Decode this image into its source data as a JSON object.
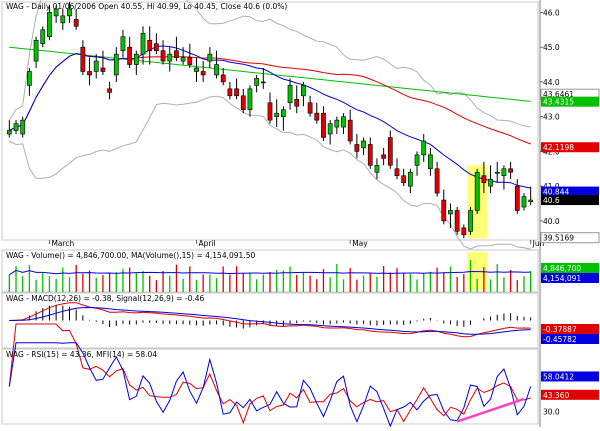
{
  "chart_data": {
    "type": "candlestick",
    "symbol": "WAG",
    "title": "WAG - Daily 01/06/2006 Open 40.55, Hi 40.99, Lo 40.45, Close 40.6 (0.0%)",
    "x_month_labels": [
      "March",
      "April",
      "May",
      "Jun"
    ],
    "price_axis": {
      "ticks": [
        40.0,
        41.0,
        42.0,
        43.0,
        44.0,
        45.0,
        46.0
      ],
      "ylim": [
        39.45,
        46.3
      ]
    },
    "price_callouts": [
      {
        "text": "43.6461",
        "value": 43.6461,
        "color": "#ffffff",
        "fill": "#ffffff"
      },
      {
        "text": "43.4315",
        "value": 43.4315,
        "color": "#00c000",
        "fill": "#00c000"
      },
      {
        "text": "42.1198",
        "value": 42.1198,
        "color": "#e00000",
        "fill": "#e00000"
      },
      {
        "text": "40.844",
        "value": 40.844,
        "color": "#0000e0",
        "fill": "#0000e0"
      },
      {
        "text": "40.6",
        "value": 40.6,
        "color": "#000000",
        "fill": "#000000"
      },
      {
        "text": "39.5169",
        "value": 39.5169,
        "color": "#ffffff",
        "fill": "#ffffff"
      }
    ],
    "candles": [
      {
        "o": 42.5,
        "h": 42.9,
        "l": 42.4,
        "c": 42.6
      },
      {
        "o": 42.6,
        "h": 42.9,
        "l": 42.5,
        "c": 42.8
      },
      {
        "o": 42.5,
        "h": 43.0,
        "l": 42.4,
        "c": 42.9
      },
      {
        "o": 43.9,
        "h": 44.4,
        "l": 43.6,
        "c": 44.3
      },
      {
        "o": 44.6,
        "h": 45.3,
        "l": 44.4,
        "c": 45.2
      },
      {
        "o": 45.1,
        "h": 45.6,
        "l": 45.0,
        "c": 45.5
      },
      {
        "o": 45.3,
        "h": 46.2,
        "l": 45.2,
        "c": 46.0
      },
      {
        "o": 45.9,
        "h": 46.2,
        "l": 45.7,
        "c": 46.1
      },
      {
        "o": 45.7,
        "h": 46.1,
        "l": 45.5,
        "c": 45.9
      },
      {
        "o": 45.9,
        "h": 46.3,
        "l": 45.7,
        "c": 46.1
      },
      {
        "o": 45.8,
        "h": 46.1,
        "l": 45.5,
        "c": 45.6
      },
      {
        "o": 45.0,
        "h": 45.2,
        "l": 44.2,
        "c": 44.3
      },
      {
        "o": 44.3,
        "h": 44.7,
        "l": 43.9,
        "c": 44.2
      },
      {
        "o": 44.3,
        "h": 44.8,
        "l": 44.1,
        "c": 44.6
      },
      {
        "o": 44.4,
        "h": 44.9,
        "l": 44.2,
        "c": 44.3
      },
      {
        "o": 43.8,
        "h": 44.0,
        "l": 43.5,
        "c": 43.7
      },
      {
        "o": 44.2,
        "h": 45.0,
        "l": 44.0,
        "c": 44.8
      },
      {
        "o": 44.9,
        "h": 45.5,
        "l": 44.7,
        "c": 45.3
      },
      {
        "o": 45.0,
        "h": 45.3,
        "l": 44.4,
        "c": 44.5
      },
      {
        "o": 44.5,
        "h": 44.9,
        "l": 44.2,
        "c": 44.8
      },
      {
        "o": 44.8,
        "h": 45.6,
        "l": 44.5,
        "c": 45.4
      },
      {
        "o": 45.2,
        "h": 45.6,
        "l": 44.5,
        "c": 44.9
      },
      {
        "o": 45.1,
        "h": 45.4,
        "l": 44.8,
        "c": 44.9
      },
      {
        "o": 44.9,
        "h": 45.2,
        "l": 44.5,
        "c": 44.6
      },
      {
        "o": 44.6,
        "h": 45.0,
        "l": 44.3,
        "c": 44.8
      },
      {
        "o": 44.9,
        "h": 45.3,
        "l": 44.6,
        "c": 44.7
      },
      {
        "o": 44.6,
        "h": 45.0,
        "l": 44.5,
        "c": 44.7
      },
      {
        "o": 44.7,
        "h": 45.1,
        "l": 44.4,
        "c": 44.5
      },
      {
        "o": 44.3,
        "h": 44.7,
        "l": 44.0,
        "c": 44.4
      },
      {
        "o": 44.3,
        "h": 44.6,
        "l": 44.0,
        "c": 44.2
      },
      {
        "o": 44.6,
        "h": 45.0,
        "l": 44.4,
        "c": 44.8
      },
      {
        "o": 44.2,
        "h": 44.9,
        "l": 44.1,
        "c": 44.5
      },
      {
        "o": 44.2,
        "h": 44.4,
        "l": 43.9,
        "c": 44.0
      },
      {
        "o": 43.8,
        "h": 44.0,
        "l": 43.5,
        "c": 43.6
      },
      {
        "o": 43.8,
        "h": 44.1,
        "l": 43.5,
        "c": 43.6
      },
      {
        "o": 43.6,
        "h": 43.8,
        "l": 43.1,
        "c": 43.2
      },
      {
        "o": 43.2,
        "h": 43.9,
        "l": 43.0,
        "c": 43.8
      },
      {
        "o": 43.9,
        "h": 44.2,
        "l": 43.7,
        "c": 44.1
      },
      {
        "o": 44.0,
        "h": 44.4,
        "l": 43.8,
        "c": 44.0
      },
      {
        "o": 43.4,
        "h": 43.7,
        "l": 42.8,
        "c": 42.9
      },
      {
        "o": 43.0,
        "h": 43.5,
        "l": 42.7,
        "c": 43.1
      },
      {
        "o": 43.0,
        "h": 43.3,
        "l": 42.6,
        "c": 43.2
      },
      {
        "o": 43.4,
        "h": 44.1,
        "l": 43.2,
        "c": 43.9
      },
      {
        "o": 43.5,
        "h": 43.9,
        "l": 43.1,
        "c": 43.3
      },
      {
        "o": 43.6,
        "h": 44.0,
        "l": 43.3,
        "c": 43.9
      },
      {
        "o": 43.4,
        "h": 43.6,
        "l": 43.0,
        "c": 43.1
      },
      {
        "o": 43.1,
        "h": 43.4,
        "l": 42.8,
        "c": 42.9
      },
      {
        "o": 43.1,
        "h": 43.3,
        "l": 42.3,
        "c": 42.4
      },
      {
        "o": 42.5,
        "h": 42.9,
        "l": 42.2,
        "c": 42.8
      },
      {
        "o": 42.7,
        "h": 43.0,
        "l": 42.5,
        "c": 42.9
      },
      {
        "o": 42.7,
        "h": 43.1,
        "l": 42.5,
        "c": 43.0
      },
      {
        "o": 42.9,
        "h": 43.2,
        "l": 42.2,
        "c": 42.3
      },
      {
        "o": 42.2,
        "h": 42.5,
        "l": 41.8,
        "c": 42.0
      },
      {
        "o": 42.1,
        "h": 42.4,
        "l": 41.9,
        "c": 42.3
      },
      {
        "o": 42.2,
        "h": 42.4,
        "l": 41.5,
        "c": 41.6
      },
      {
        "o": 41.4,
        "h": 41.8,
        "l": 41.2,
        "c": 41.6
      },
      {
        "o": 41.9,
        "h": 42.1,
        "l": 41.6,
        "c": 41.8
      },
      {
        "o": 42.4,
        "h": 42.6,
        "l": 41.5,
        "c": 41.6
      },
      {
        "o": 41.5,
        "h": 41.8,
        "l": 41.2,
        "c": 41.3
      },
      {
        "o": 41.3,
        "h": 41.5,
        "l": 41.0,
        "c": 41.1
      },
      {
        "o": 41.0,
        "h": 41.5,
        "l": 40.8,
        "c": 41.4
      },
      {
        "o": 41.6,
        "h": 42.0,
        "l": 41.3,
        "c": 41.9
      },
      {
        "o": 41.9,
        "h": 42.5,
        "l": 41.7,
        "c": 42.3
      },
      {
        "o": 41.5,
        "h": 42.1,
        "l": 41.3,
        "c": 41.9
      },
      {
        "o": 41.5,
        "h": 41.7,
        "l": 40.7,
        "c": 40.8
      },
      {
        "o": 40.6,
        "h": 40.9,
        "l": 39.9,
        "c": 40.0
      },
      {
        "o": 40.2,
        "h": 40.5,
        "l": 39.8,
        "c": 40.3
      },
      {
        "o": 40.3,
        "h": 40.4,
        "l": 39.6,
        "c": 39.7
      },
      {
        "o": 39.8,
        "h": 39.9,
        "l": 39.5,
        "c": 39.6
      },
      {
        "o": 39.7,
        "h": 40.4,
        "l": 39.6,
        "c": 40.3
      },
      {
        "o": 40.3,
        "h": 41.5,
        "l": 40.2,
        "c": 41.4
      },
      {
        "o": 41.3,
        "h": 41.7,
        "l": 40.8,
        "c": 41.1
      },
      {
        "o": 41.0,
        "h": 41.6,
        "l": 40.8,
        "c": 41.2
      },
      {
        "o": 41.4,
        "h": 41.7,
        "l": 41.1,
        "c": 41.4
      },
      {
        "o": 41.3,
        "h": 41.6,
        "l": 40.9,
        "c": 41.5
      },
      {
        "o": 41.5,
        "h": 41.7,
        "l": 41.2,
        "c": 41.4
      },
      {
        "o": 41.0,
        "h": 41.2,
        "l": 40.2,
        "c": 40.3
      },
      {
        "o": 40.4,
        "h": 40.8,
        "l": 40.3,
        "c": 40.7
      },
      {
        "o": 40.55,
        "h": 40.99,
        "l": 40.45,
        "c": 40.6
      }
    ],
    "month_start_index": [
      6,
      28,
      51,
      78
    ],
    "highlight_range": [
      69,
      71
    ],
    "ma_legend": {
      "text": "WAG - Volume() = 4,846,700.00, MA(Volume(),15) = 4,154,091.50"
    },
    "volume_panel": {
      "callouts": [
        {
          "text": "4,846,700",
          "value": 4846700,
          "color": "#00c000",
          "fill": "#00c000"
        },
        {
          "text": "4,154,091",
          "value": 4154091,
          "color": "#0000e0",
          "fill": "#0000e0"
        }
      ]
    },
    "macd_panel": {
      "legend": {
        "text": "WAG - MACD(12,26) = -0.38, Signal(12,26,9) = -0.46"
      },
      "callouts": [
        {
          "text": "-0.37887",
          "value": -0.37887,
          "color": "#e00000",
          "fill": "#e00000"
        },
        {
          "text": "-0.45782",
          "value": -0.45782,
          "color": "#0000e0",
          "fill": "#0000e0"
        }
      ]
    },
    "rsi_panel": {
      "legend": {
        "text": "WAG - RSI(15) = 43.36, MFI(14) = 58.04"
      },
      "ticks": [
        30.0
      ],
      "callouts": [
        {
          "text": "58.0412",
          "value": 58.0412,
          "color": "#0000e0",
          "fill": "#0000e0"
        },
        {
          "text": "43.360",
          "value": 43.36,
          "color": "#e00000",
          "fill": "#e00000"
        }
      ]
    },
    "colors": {
      "up": "#00c000",
      "down": "#e00000",
      "highlight": "#ffff66",
      "ma_green": "#00c000",
      "ma_red": "#e00000",
      "ma_blue": "#0000e0",
      "band": "#b0b0b0",
      "trend": "#ff40c0"
    }
  }
}
